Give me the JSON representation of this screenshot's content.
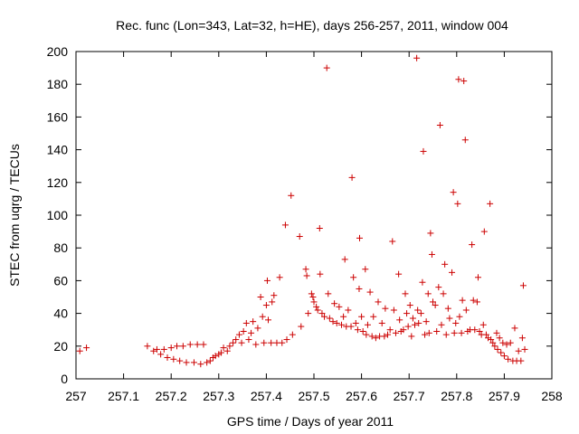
{
  "chart_data": {
    "type": "scatter",
    "title": "Rec. func (Lon=343, Lat=32, h=HE), days 256-257, 2011, window 004",
    "xlabel": "GPS time / Days of year 2011",
    "ylabel": "STEC from uqrg / TECUs",
    "xlim": [
      257,
      258
    ],
    "ylim": [
      0,
      200
    ],
    "x_ticks": [
      "257",
      "257.1",
      "257.2",
      "257.3",
      "257.4",
      "257.5",
      "257.6",
      "257.7",
      "257.8",
      "257.9",
      "258"
    ],
    "y_ticks": [
      "0",
      "20",
      "40",
      "60",
      "80",
      "100",
      "120",
      "140",
      "160",
      "180",
      "200"
    ],
    "grid": false,
    "marker": "plus",
    "color": "#cc0000",
    "series": [
      {
        "points": [
          [
            257.008,
            17
          ],
          [
            257.022,
            19
          ],
          [
            257.15,
            20
          ],
          [
            257.163,
            17
          ],
          [
            257.17,
            18
          ],
          [
            257.178,
            15
          ],
          [
            257.185,
            18
          ],
          [
            257.192,
            13
          ],
          [
            257.2,
            19
          ],
          [
            257.205,
            12
          ],
          [
            257.212,
            20
          ],
          [
            257.218,
            11
          ],
          [
            257.225,
            20
          ],
          [
            257.232,
            10
          ],
          [
            257.24,
            21
          ],
          [
            257.248,
            10
          ],
          [
            257.255,
            21
          ],
          [
            257.262,
            9
          ],
          [
            257.268,
            21
          ],
          [
            257.275,
            10
          ],
          [
            257.282,
            11
          ],
          [
            257.288,
            13
          ],
          [
            257.293,
            14
          ],
          [
            257.3,
            15
          ],
          [
            257.305,
            16
          ],
          [
            257.31,
            19
          ],
          [
            257.318,
            17
          ],
          [
            257.323,
            20
          ],
          [
            257.33,
            22
          ],
          [
            257.336,
            24
          ],
          [
            257.343,
            27
          ],
          [
            257.348,
            22
          ],
          [
            257.352,
            29
          ],
          [
            257.358,
            34
          ],
          [
            257.363,
            24
          ],
          [
            257.368,
            28
          ],
          [
            257.372,
            35
          ],
          [
            257.378,
            21
          ],
          [
            257.382,
            31
          ],
          [
            257.388,
            50
          ],
          [
            257.392,
            38
          ],
          [
            257.395,
            22
          ],
          [
            257.4,
            45
          ],
          [
            257.402,
            60
          ],
          [
            257.404,
            36
          ],
          [
            257.41,
            22
          ],
          [
            257.412,
            47
          ],
          [
            257.416,
            51
          ],
          [
            257.422,
            22
          ],
          [
            257.428,
            62
          ],
          [
            257.433,
            22
          ],
          [
            257.44,
            94
          ],
          [
            257.443,
            24
          ],
          [
            257.452,
            112
          ],
          [
            257.455,
            27
          ],
          [
            257.47,
            87
          ],
          [
            257.473,
            32
          ],
          [
            257.483,
            67
          ],
          [
            257.485,
            63
          ],
          [
            257.488,
            40
          ],
          [
            257.495,
            52
          ],
          [
            257.498,
            50
          ],
          [
            257.5,
            47
          ],
          [
            257.505,
            44
          ],
          [
            257.508,
            42
          ],
          [
            257.512,
            92
          ],
          [
            257.513,
            64
          ],
          [
            257.517,
            40
          ],
          [
            257.522,
            38
          ],
          [
            257.527,
            190
          ],
          [
            257.53,
            52
          ],
          [
            257.533,
            37
          ],
          [
            257.54,
            35
          ],
          [
            257.543,
            46
          ],
          [
            257.548,
            34
          ],
          [
            257.553,
            44
          ],
          [
            257.558,
            33
          ],
          [
            257.562,
            38
          ],
          [
            257.565,
            73
          ],
          [
            257.568,
            32
          ],
          [
            257.572,
            42
          ],
          [
            257.578,
            32
          ],
          [
            257.58,
            123
          ],
          [
            257.583,
            62
          ],
          [
            257.588,
            34
          ],
          [
            257.592,
            30
          ],
          [
            257.595,
            55
          ],
          [
            257.596,
            86
          ],
          [
            257.6,
            38
          ],
          [
            257.603,
            29
          ],
          [
            257.608,
            67
          ],
          [
            257.61,
            27
          ],
          [
            257.613,
            33
          ],
          [
            257.618,
            53
          ],
          [
            257.622,
            26
          ],
          [
            257.625,
            38
          ],
          [
            257.63,
            25
          ],
          [
            257.635,
            47
          ],
          [
            257.638,
            26
          ],
          [
            257.643,
            34
          ],
          [
            257.648,
            26
          ],
          [
            257.65,
            43
          ],
          [
            257.655,
            27
          ],
          [
            257.66,
            30
          ],
          [
            257.665,
            84
          ],
          [
            257.668,
            42
          ],
          [
            257.672,
            28
          ],
          [
            257.678,
            64
          ],
          [
            257.68,
            36
          ],
          [
            257.683,
            29
          ],
          [
            257.688,
            30
          ],
          [
            257.692,
            52
          ],
          [
            257.695,
            40
          ],
          [
            257.698,
            32
          ],
          [
            257.702,
            45
          ],
          [
            257.705,
            26
          ],
          [
            257.708,
            37
          ],
          [
            257.712,
            33
          ],
          [
            257.716,
            196
          ],
          [
            257.718,
            42
          ],
          [
            257.72,
            34
          ],
          [
            257.725,
            40
          ],
          [
            257.728,
            59
          ],
          [
            257.73,
            139
          ],
          [
            257.733,
            27
          ],
          [
            257.736,
            35
          ],
          [
            257.74,
            52
          ],
          [
            257.742,
            28
          ],
          [
            257.745,
            89
          ],
          [
            257.748,
            76
          ],
          [
            257.75,
            47
          ],
          [
            257.755,
            45
          ],
          [
            257.758,
            29
          ],
          [
            257.762,
            56
          ],
          [
            257.765,
            155
          ],
          [
            257.768,
            33
          ],
          [
            257.772,
            52
          ],
          [
            257.775,
            70
          ],
          [
            257.778,
            27
          ],
          [
            257.782,
            43
          ],
          [
            257.785,
            37
          ],
          [
            257.79,
            65
          ],
          [
            257.793,
            114
          ],
          [
            257.795,
            28
          ],
          [
            257.798,
            34
          ],
          [
            257.802,
            107
          ],
          [
            257.804,
            183
          ],
          [
            257.806,
            38
          ],
          [
            257.81,
            28
          ],
          [
            257.812,
            48
          ],
          [
            257.815,
            182
          ],
          [
            257.818,
            146
          ],
          [
            257.82,
            42
          ],
          [
            257.823,
            29
          ],
          [
            257.828,
            30
          ],
          [
            257.832,
            82
          ],
          [
            257.835,
            48
          ],
          [
            257.838,
            30
          ],
          [
            257.843,
            47
          ],
          [
            257.845,
            62
          ],
          [
            257.848,
            29
          ],
          [
            257.852,
            27
          ],
          [
            257.856,
            33
          ],
          [
            257.858,
            90
          ],
          [
            257.862,
            27
          ],
          [
            257.866,
            25
          ],
          [
            257.87,
            107
          ],
          [
            257.872,
            24
          ],
          [
            257.876,
            22
          ],
          [
            257.88,
            20
          ],
          [
            257.884,
            28
          ],
          [
            257.886,
            18
          ],
          [
            257.89,
            25
          ],
          [
            257.893,
            16
          ],
          [
            257.897,
            22
          ],
          [
            257.9,
            14
          ],
          [
            257.905,
            21
          ],
          [
            257.908,
            12
          ],
          [
            257.913,
            22
          ],
          [
            257.918,
            11
          ],
          [
            257.922,
            31
          ],
          [
            257.926,
            11
          ],
          [
            257.93,
            17
          ],
          [
            257.935,
            11
          ],
          [
            257.938,
            25
          ],
          [
            257.94,
            57
          ],
          [
            257.943,
            18
          ]
        ]
      }
    ]
  }
}
